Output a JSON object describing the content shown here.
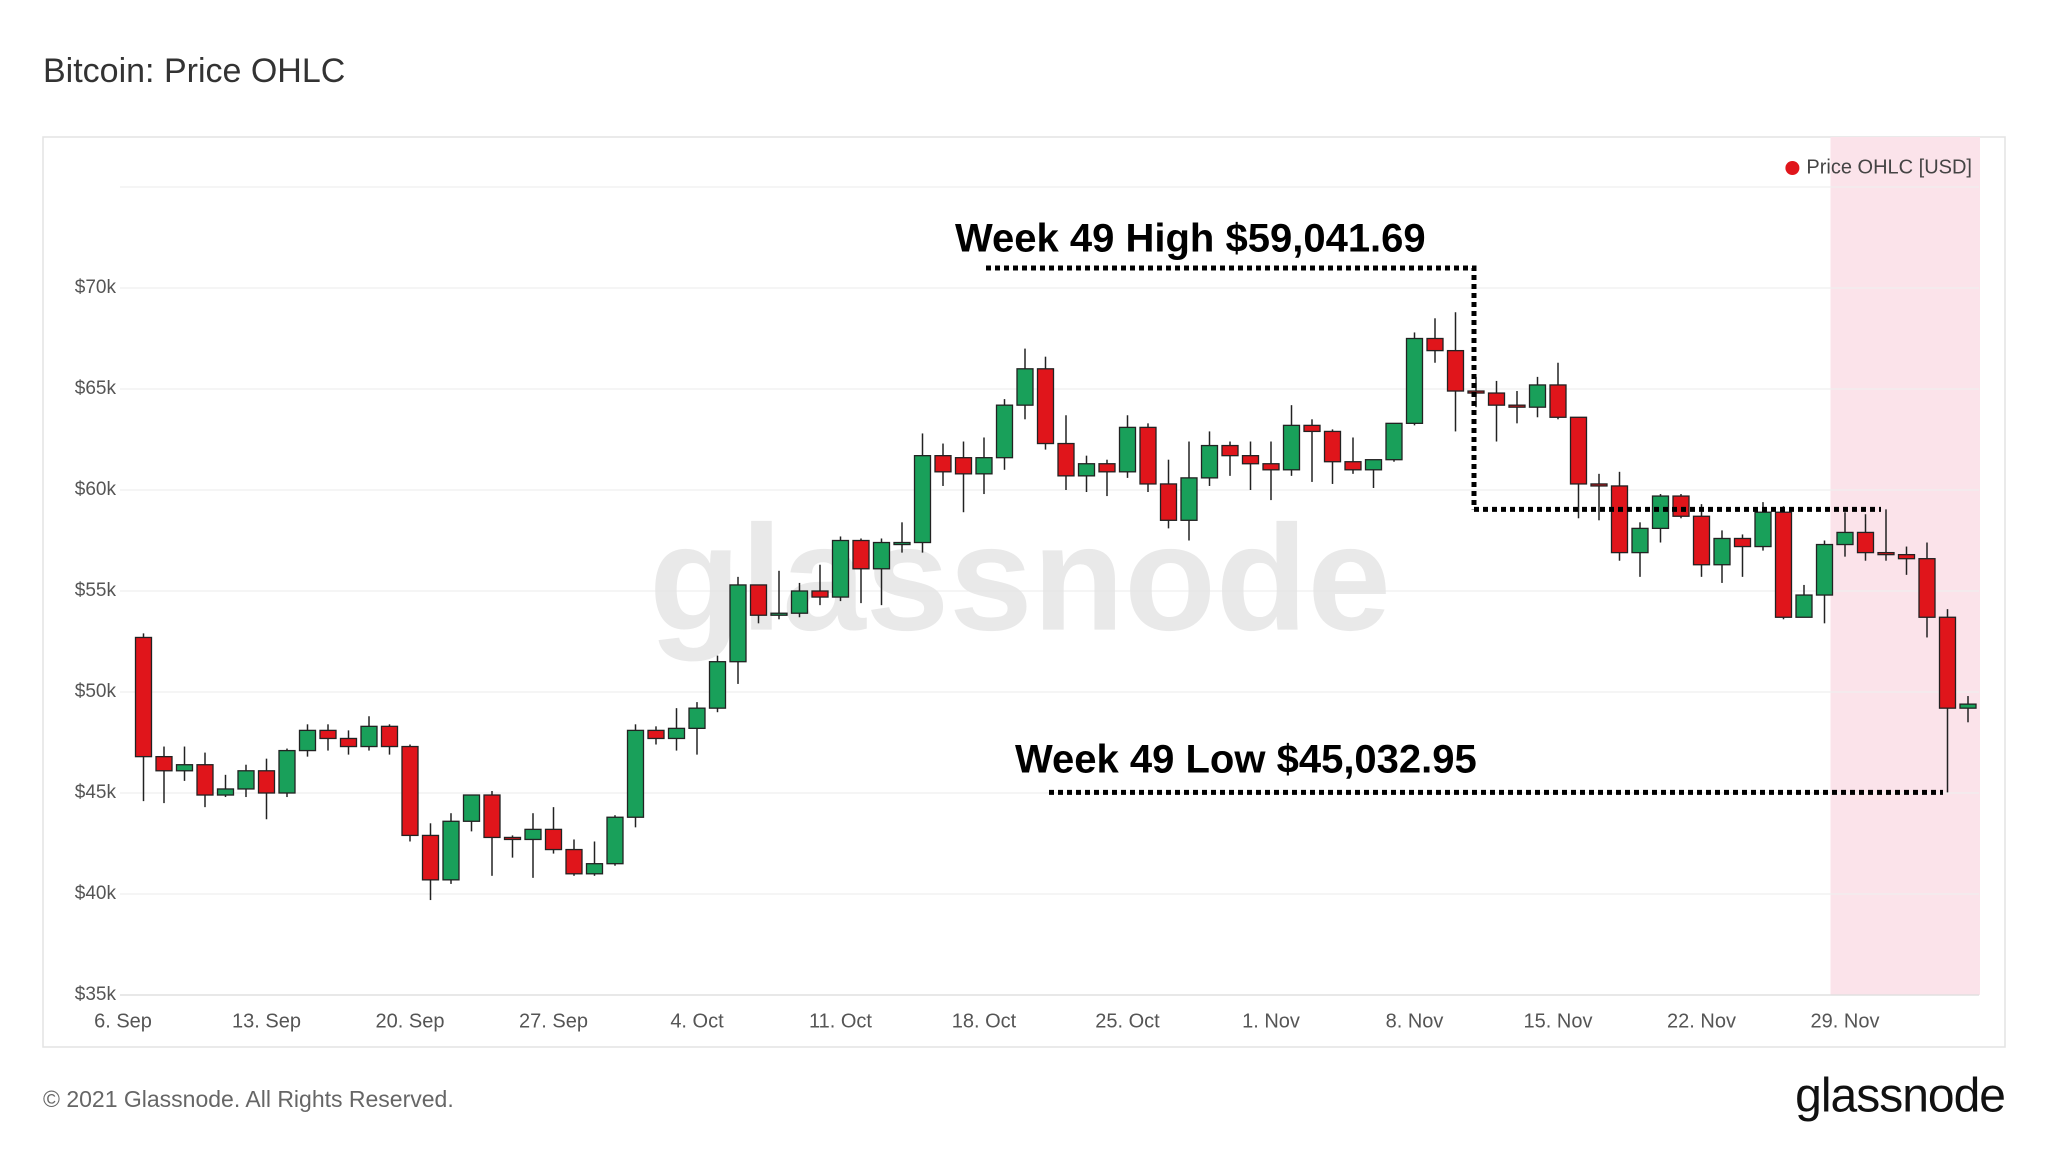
{
  "chart_data": {
    "type": "candlestick",
    "title": "Bitcoin: Price OHLC",
    "watermark": "glassnode",
    "legend": "top-right",
    "series": [
      {
        "name": "Price OHLC [USD]",
        "color": "#e0151b"
      }
    ],
    "up_color": "#19a05a",
    "down_color": "#e0151b",
    "x": [
      "7. Sep",
      "8. Sep",
      "9. Sep",
      "10. Sep",
      "11. Sep",
      "12. Sep",
      "13. Sep",
      "14. Sep",
      "15. Sep",
      "16. Sep",
      "17. Sep",
      "18. Sep",
      "19. Sep",
      "20. Sep",
      "21. Sep",
      "22. Sep",
      "23. Sep",
      "24. Sep",
      "25. Sep",
      "26. Sep",
      "27. Sep",
      "28. Sep",
      "29. Sep",
      "30. Sep",
      "1. Oct",
      "2. Oct",
      "3. Oct",
      "4. Oct",
      "5. Oct",
      "6. Oct",
      "7. Oct",
      "8. Oct",
      "9. Oct",
      "10. Oct",
      "11. Oct",
      "12. Oct",
      "13. Oct",
      "14. Oct",
      "15. Oct",
      "16. Oct",
      "17. Oct",
      "18. Oct",
      "19. Oct",
      "20. Oct",
      "21. Oct",
      "22. Oct",
      "23. Oct",
      "24. Oct",
      "25. Oct",
      "26. Oct",
      "27. Oct",
      "28. Oct",
      "29. Oct",
      "30. Oct",
      "31. Oct",
      "1. Nov",
      "2. Nov",
      "3. Nov",
      "4. Nov",
      "5. Nov",
      "6. Nov",
      "7. Nov",
      "8. Nov",
      "9. Nov",
      "10. Nov",
      "11. Nov",
      "12. Nov",
      "13. Nov",
      "14. Nov",
      "15. Nov",
      "16. Nov",
      "17. Nov",
      "18. Nov",
      "19. Nov",
      "20. Nov",
      "21. Nov",
      "22. Nov",
      "23. Nov",
      "24. Nov",
      "25. Nov",
      "26. Nov",
      "27. Nov",
      "28. Nov",
      "29. Nov",
      "30. Nov",
      "1. Dec",
      "2. Dec",
      "3. Dec",
      "4. Dec",
      "5. Dec"
    ],
    "open": [
      52700,
      46800,
      46100,
      46400,
      44900,
      45200,
      46100,
      45000,
      47100,
      48100,
      47700,
      47300,
      48300,
      47300,
      42900,
      40700,
      43600,
      44900,
      42800,
      42700,
      43200,
      42200,
      41000,
      41500,
      43800,
      48100,
      47700,
      48200,
      49200,
      51500,
      55300,
      53800,
      53900,
      55000,
      54700,
      57500,
      56100,
      57300,
      57400,
      61700,
      61600,
      60800,
      61600,
      64200,
      66000,
      62300,
      60700,
      61300,
      60900,
      63100,
      60300,
      58500,
      60600,
      62200,
      61700,
      61300,
      61000,
      63200,
      62900,
      61400,
      61000,
      61500,
      63300,
      67500,
      66900,
      64900,
      64800,
      64200,
      64100,
      65200,
      63600,
      60300,
      60200,
      56900,
      58100,
      59700,
      58700,
      56300,
      57600,
      57200,
      58900,
      53700,
      54800,
      57300,
      57900,
      56900,
      56800,
      56600,
      53700,
      49200
    ],
    "high": [
      52900,
      47300,
      47300,
      47000,
      45900,
      46400,
      46700,
      47200,
      48400,
      48400,
      48100,
      48800,
      48400,
      47400,
      43500,
      44000,
      44900,
      45100,
      42900,
      44000,
      44300,
      42700,
      42600,
      43900,
      48400,
      48300,
      49200,
      49500,
      51800,
      55700,
      55300,
      56000,
      55400,
      56300,
      57700,
      57600,
      57600,
      58400,
      62800,
      62300,
      62400,
      62600,
      64500,
      67000,
      66600,
      63700,
      61700,
      61500,
      63700,
      63300,
      61500,
      62400,
      62900,
      62400,
      62400,
      62400,
      64200,
      63500,
      63000,
      62600,
      61500,
      63300,
      67800,
      68500,
      68800,
      65600,
      65400,
      64900,
      65600,
      66300,
      63600,
      60800,
      60900,
      58400,
      59800,
      59800,
      59300,
      58000,
      57800,
      59400,
      59200,
      55300,
      57500,
      58900,
      58800,
      59041.69,
      57200,
      57400,
      54100,
      49800
    ],
    "low": [
      44600,
      44500,
      45600,
      44300,
      44800,
      44800,
      43700,
      44800,
      46800,
      47100,
      46900,
      47100,
      46900,
      42600,
      39700,
      40500,
      43100,
      40900,
      41800,
      40800,
      42000,
      40900,
      40900,
      41400,
      43300,
      47400,
      47100,
      46900,
      49000,
      50400,
      53400,
      53600,
      53700,
      54300,
      54500,
      54400,
      54300,
      56900,
      56900,
      60200,
      58900,
      59800,
      61000,
      63500,
      62000,
      60000,
      59900,
      59700,
      60600,
      59900,
      58100,
      57500,
      60200,
      60700,
      60000,
      59500,
      60700,
      60400,
      60300,
      60800,
      60100,
      61400,
      63200,
      66300,
      62900,
      64100,
      62400,
      63300,
      63600,
      63500,
      58600,
      58500,
      56500,
      55700,
      57400,
      58600,
      55700,
      55400,
      55700,
      57000,
      53600,
      53700,
      53400,
      56700,
      56500,
      56500,
      55800,
      52700,
      45032.95,
      48500
    ],
    "close": [
      46800,
      46100,
      46400,
      44900,
      45200,
      46100,
      45000,
      47100,
      48100,
      47700,
      47300,
      48300,
      47300,
      42900,
      40700,
      43600,
      44900,
      42800,
      42700,
      43200,
      42200,
      41000,
      41500,
      43800,
      48100,
      47700,
      48200,
      49200,
      51500,
      55300,
      53800,
      53900,
      55000,
      54700,
      57500,
      56100,
      57400,
      57400,
      61700,
      60900,
      60800,
      61600,
      64200,
      66000,
      62300,
      60700,
      61300,
      60900,
      63100,
      60300,
      58500,
      60600,
      62200,
      61700,
      61300,
      61000,
      63200,
      62900,
      61400,
      61000,
      61500,
      63300,
      67500,
      66900,
      64900,
      64800,
      64200,
      64100,
      65200,
      63600,
      60300,
      60200,
      56900,
      58100,
      59700,
      58700,
      56300,
      57600,
      57200,
      58900,
      53700,
      54800,
      57300,
      57900,
      56900,
      56800,
      56600,
      53700,
      49200,
      49400
    ],
    "xticks": [
      "6. Sep",
      "13. Sep",
      "20. Sep",
      "27. Sep",
      "4. Oct",
      "11. Oct",
      "18. Oct",
      "25. Oct",
      "1. Nov",
      "8. Nov",
      "15. Nov",
      "22. Nov",
      "29. Nov"
    ],
    "ylim": [
      35000,
      75000
    ],
    "yticks": [
      {
        "value": 35000,
        "label": "$35k"
      },
      {
        "value": 40000,
        "label": "$40k"
      },
      {
        "value": 45000,
        "label": "$45k"
      },
      {
        "value": 50000,
        "label": "$50k"
      },
      {
        "value": 55000,
        "label": "$55k"
      },
      {
        "value": 60000,
        "label": "$60k"
      },
      {
        "value": 65000,
        "label": "$65k"
      },
      {
        "value": 70000,
        "label": "$70k"
      },
      75000
    ],
    "grid": true,
    "highlight": {
      "from": "28. Nov",
      "to": "5. Dec",
      "color": "#fbe3ea"
    },
    "annotations": [
      {
        "text": "Week 49 High $59,041.69",
        "value": 59041.69
      },
      {
        "text": "Week 49 Low $45,032.95",
        "value": 45032.95
      }
    ]
  },
  "footer": {
    "copyright": "© 2021 Glassnode. All Rights Reserved.",
    "logo": "glassnode"
  }
}
